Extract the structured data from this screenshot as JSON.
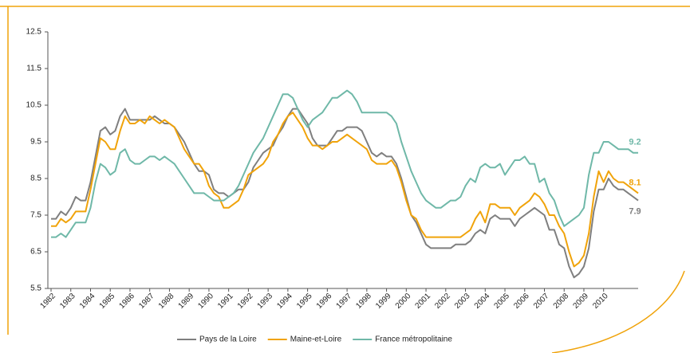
{
  "chart_data": {
    "type": "line",
    "categories": [
      "1982",
      null,
      null,
      null,
      "1983",
      null,
      null,
      null,
      "1984",
      null,
      null,
      null,
      "1985",
      null,
      null,
      null,
      "1986",
      null,
      null,
      null,
      "1987",
      null,
      null,
      null,
      "1988",
      null,
      null,
      null,
      "1989",
      null,
      null,
      null,
      "1990",
      null,
      null,
      null,
      "1991",
      null,
      null,
      null,
      "1992",
      null,
      null,
      null,
      "1993",
      null,
      null,
      null,
      "1994",
      null,
      null,
      null,
      "1995",
      null,
      null,
      null,
      "1996",
      null,
      null,
      null,
      "1997",
      null,
      null,
      null,
      "1998",
      null,
      null,
      null,
      "1999",
      null,
      null,
      null,
      "2000",
      null,
      null,
      null,
      "2001",
      null,
      null,
      null,
      "2002",
      null,
      null,
      null,
      "2003",
      null,
      null,
      null,
      "2004",
      null,
      null,
      null,
      "2005",
      null,
      null,
      null,
      "2006",
      null,
      null,
      null,
      "2007",
      null,
      null,
      null,
      "2008",
      null,
      null,
      null,
      "2009",
      null,
      null,
      null,
      "2010",
      null,
      null,
      null,
      null,
      null,
      null,
      null
    ],
    "series": [
      {
        "name": "Pays de la Loire",
        "color": "#7f7f7f",
        "values": [
          7.4,
          7.4,
          7.6,
          7.5,
          7.7,
          8.0,
          7.9,
          7.9,
          8.4,
          9.1,
          9.8,
          9.9,
          9.7,
          9.8,
          10.2,
          10.4,
          10.1,
          10.1,
          10.1,
          10.1,
          10.1,
          10.2,
          10.1,
          10.0,
          10.0,
          9.9,
          9.7,
          9.5,
          9.2,
          8.9,
          8.7,
          8.7,
          8.6,
          8.2,
          8.1,
          8.1,
          8.0,
          8.1,
          8.2,
          8.2,
          8.4,
          8.8,
          9.0,
          9.2,
          9.3,
          9.4,
          9.7,
          9.9,
          10.2,
          10.4,
          10.4,
          10.2,
          10.0,
          9.6,
          9.4,
          9.4,
          9.4,
          9.6,
          9.8,
          9.8,
          9.9,
          9.9,
          9.9,
          9.8,
          9.5,
          9.2,
          9.1,
          9.2,
          9.1,
          9.1,
          8.9,
          8.5,
          8.0,
          7.5,
          7.3,
          7.0,
          6.7,
          6.6,
          6.6,
          6.6,
          6.6,
          6.6,
          6.7,
          6.7,
          6.7,
          6.8,
          7.0,
          7.1,
          7.0,
          7.4,
          7.5,
          7.4,
          7.4,
          7.4,
          7.2,
          7.4,
          7.5,
          7.6,
          7.7,
          7.6,
          7.5,
          7.1,
          7.1,
          6.7,
          6.6,
          6.1,
          5.8,
          5.9,
          6.1,
          6.6,
          7.6,
          8.2,
          8.2,
          8.5,
          8.3,
          8.2,
          8.2,
          8.1,
          8.0,
          7.9
        ]
      },
      {
        "name": "Maine-et-Loire",
        "color": "#f0a30a",
        "values": [
          7.2,
          7.2,
          7.4,
          7.3,
          7.4,
          7.6,
          7.6,
          7.6,
          8.2,
          8.9,
          9.6,
          9.5,
          9.3,
          9.3,
          9.8,
          10.2,
          10.0,
          10.0,
          10.1,
          10.0,
          10.2,
          10.1,
          10.0,
          10.1,
          10.0,
          9.9,
          9.6,
          9.3,
          9.1,
          8.9,
          8.9,
          8.7,
          8.3,
          8.1,
          8.0,
          7.7,
          7.7,
          7.8,
          7.9,
          8.2,
          8.6,
          8.7,
          8.8,
          8.9,
          9.1,
          9.5,
          9.7,
          10.0,
          10.2,
          10.3,
          10.1,
          9.9,
          9.6,
          9.4,
          9.4,
          9.3,
          9.4,
          9.5,
          9.5,
          9.6,
          9.7,
          9.6,
          9.5,
          9.4,
          9.3,
          9.0,
          8.9,
          8.9,
          8.9,
          9.0,
          8.8,
          8.4,
          7.9,
          7.5,
          7.4,
          7.1,
          6.9,
          6.9,
          6.9,
          6.9,
          6.9,
          6.9,
          6.9,
          6.9,
          7.0,
          7.1,
          7.4,
          7.6,
          7.3,
          7.8,
          7.8,
          7.7,
          7.7,
          7.7,
          7.5,
          7.7,
          7.8,
          7.9,
          8.1,
          8.0,
          7.8,
          7.5,
          7.5,
          7.2,
          7.0,
          6.5,
          6.1,
          6.2,
          6.4,
          7.0,
          8.0,
          8.7,
          8.4,
          8.7,
          8.5,
          8.4,
          8.4,
          8.3,
          8.2,
          8.1
        ]
      },
      {
        "name": "France métropolitaine",
        "color": "#6fb8a8",
        "values": [
          6.9,
          6.9,
          7.0,
          6.9,
          7.1,
          7.3,
          7.3,
          7.3,
          7.7,
          8.4,
          8.9,
          8.8,
          8.6,
          8.7,
          9.2,
          9.3,
          9.0,
          8.9,
          8.9,
          9.0,
          9.1,
          9.1,
          9.0,
          9.1,
          9.0,
          8.9,
          8.7,
          8.5,
          8.3,
          8.1,
          8.1,
          8.1,
          8.0,
          7.9,
          7.9,
          7.9,
          8.0,
          8.1,
          8.3,
          8.6,
          8.9,
          9.2,
          9.4,
          9.6,
          9.9,
          10.2,
          10.5,
          10.8,
          10.8,
          10.7,
          10.4,
          10.1,
          9.9,
          10.1,
          10.2,
          10.3,
          10.5,
          10.7,
          10.7,
          10.8,
          10.9,
          10.8,
          10.6,
          10.3,
          10.3,
          10.3,
          10.3,
          10.3,
          10.3,
          10.2,
          10.0,
          9.5,
          9.1,
          8.7,
          8.4,
          8.1,
          7.9,
          7.8,
          7.7,
          7.7,
          7.8,
          7.9,
          7.9,
          8.0,
          8.3,
          8.5,
          8.4,
          8.8,
          8.9,
          8.8,
          8.8,
          8.9,
          8.6,
          8.8,
          9.0,
          9.0,
          9.1,
          8.9,
          8.9,
          8.4,
          8.5,
          8.1,
          7.9,
          7.5,
          7.2,
          7.3,
          7.4,
          7.5,
          7.7,
          8.6,
          9.2,
          9.2,
          9.5,
          9.5,
          9.4,
          9.3,
          9.3,
          9.3,
          9.2,
          9.2
        ]
      }
    ],
    "ylim": [
      5.5,
      12.5
    ],
    "yticks": [
      5.5,
      6.5,
      7.5,
      8.5,
      9.5,
      10.5,
      11.5,
      12.5
    ],
    "grid": false,
    "legend": "bottom"
  }
}
